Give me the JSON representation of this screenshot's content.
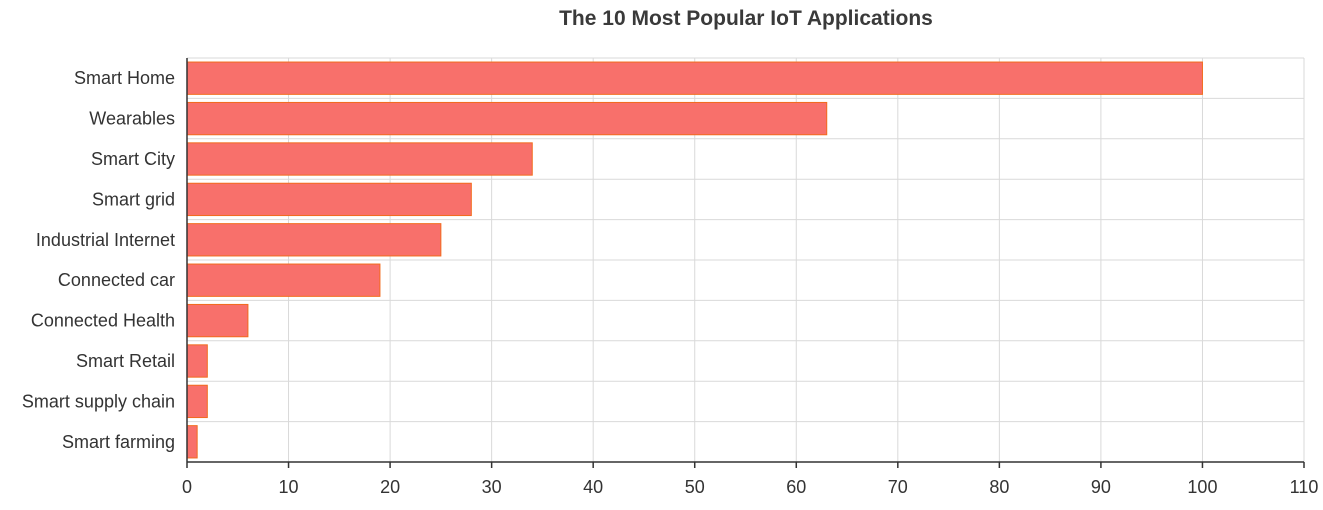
{
  "chart_data": {
    "type": "bar",
    "orientation": "horizontal",
    "title": "The 10 Most Popular IoT Applications",
    "xlabel": "",
    "ylabel": "",
    "categories": [
      "Smart Home",
      "Wearables",
      "Smart City",
      "Smart grid",
      "Industrial Internet",
      "Connected car",
      "Connected Health",
      "Smart Retail",
      "Smart supply chain",
      "Smart farming"
    ],
    "values": [
      100,
      63,
      34,
      28,
      25,
      19,
      6,
      2,
      2,
      1
    ],
    "xlim": [
      0,
      110
    ],
    "xticks": [
      0,
      10,
      20,
      30,
      40,
      50,
      60,
      70,
      80,
      90,
      100,
      110
    ],
    "grid": true,
    "bar_color": "#f8706b",
    "bar_edge_color": "#f26b1d"
  }
}
